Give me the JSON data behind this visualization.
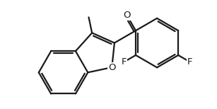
{
  "bg_color": "#ffffff",
  "bond_color": "#1a1a1a",
  "line_width": 1.6,
  "font_size": 9.5,
  "figsize": [
    3.07,
    1.54
  ],
  "dpi": 100,
  "atom_labels": {
    "O_furan": "O",
    "O_carbonyl": "O",
    "F_ortho": "F",
    "F_meta": "F"
  }
}
